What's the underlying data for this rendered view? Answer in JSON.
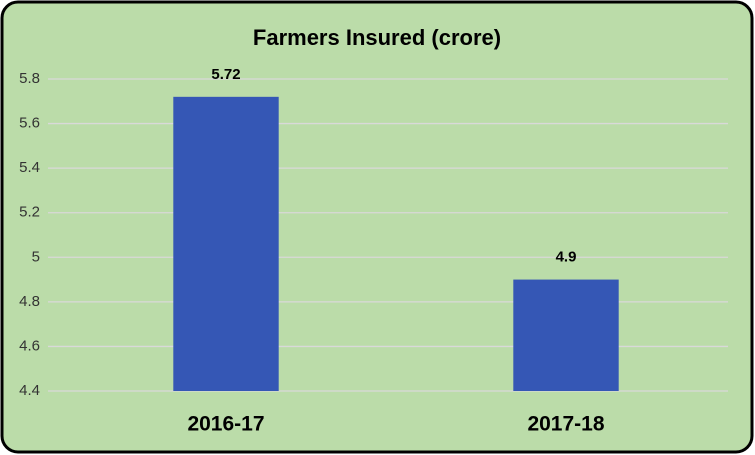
{
  "chart_data": {
    "type": "bar",
    "title": "Farmers Insured (crore)",
    "categories": [
      "2016-17",
      "2017-18"
    ],
    "values": [
      5.72,
      4.9
    ],
    "color": "#3557b5",
    "ylim": [
      4.4,
      5.8
    ],
    "yticks": [
      4.4,
      4.6,
      4.8,
      5,
      5.2,
      5.4,
      5.6,
      5.8
    ],
    "grid": true
  }
}
